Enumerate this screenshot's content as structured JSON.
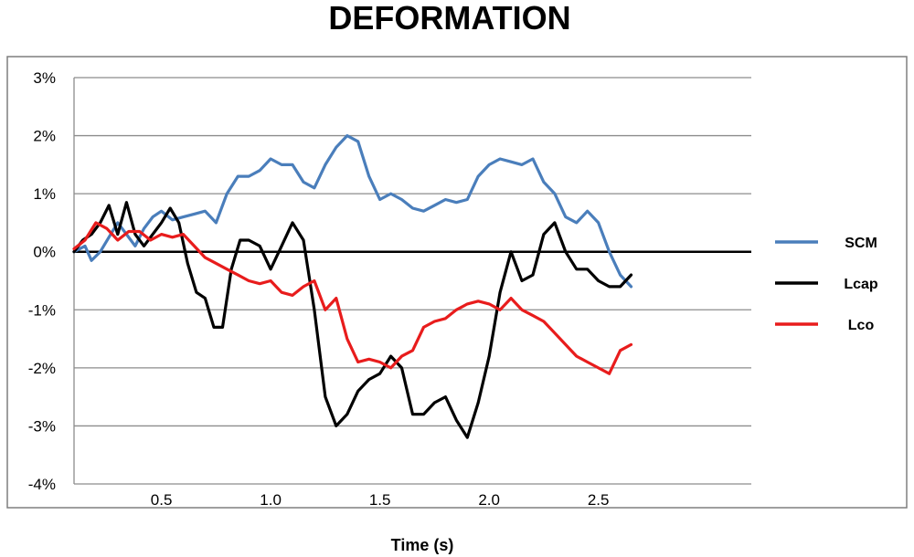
{
  "chart_data": {
    "type": "line",
    "title": "DEFORMATION",
    "xlabel": "Time (s)",
    "ylabel": "",
    "xlim": [
      0.1,
      3.2
    ],
    "ylim": [
      -4,
      3
    ],
    "yticks": [
      3,
      2,
      1,
      0,
      -1,
      -2,
      -3,
      -4
    ],
    "ytick_labels": [
      "3%",
      "2%",
      "1%",
      "0%",
      "-1%",
      "-2%",
      "-3%",
      "-4%"
    ],
    "xticks": [
      0.5,
      1.0,
      1.5,
      2.0,
      2.5
    ],
    "xtick_labels": [
      "0.5",
      "1.0",
      "1.5",
      "2.0",
      "2.5"
    ],
    "grid": "horizontal",
    "legend_position": "right",
    "series": [
      {
        "name": "SCM",
        "color": "#4A7EBB",
        "x": [
          0.1,
          0.15,
          0.18,
          0.22,
          0.26,
          0.3,
          0.34,
          0.38,
          0.42,
          0.46,
          0.5,
          0.55,
          0.6,
          0.65,
          0.7,
          0.75,
          0.8,
          0.85,
          0.9,
          0.95,
          1.0,
          1.05,
          1.1,
          1.15,
          1.2,
          1.25,
          1.3,
          1.35,
          1.4,
          1.45,
          1.5,
          1.55,
          1.6,
          1.65,
          1.7,
          1.75,
          1.8,
          1.85,
          1.9,
          1.95,
          2.0,
          2.05,
          2.1,
          2.15,
          2.2,
          2.25,
          2.3,
          2.35,
          2.4,
          2.45,
          2.5,
          2.55,
          2.6,
          2.65
        ],
        "values": [
          0.0,
          0.1,
          -0.15,
          0.0,
          0.25,
          0.5,
          0.3,
          0.1,
          0.4,
          0.6,
          0.7,
          0.55,
          0.6,
          0.65,
          0.7,
          0.5,
          1.0,
          1.3,
          1.3,
          1.4,
          1.6,
          1.5,
          1.5,
          1.2,
          1.1,
          1.5,
          1.8,
          2.0,
          1.9,
          1.3,
          0.9,
          1.0,
          0.9,
          0.75,
          0.7,
          0.8,
          0.9,
          0.85,
          0.9,
          1.3,
          1.5,
          1.6,
          1.55,
          1.5,
          1.6,
          1.2,
          1.0,
          0.6,
          0.5,
          0.7,
          0.5,
          0.0,
          -0.4,
          -0.6
        ]
      },
      {
        "name": "Lcap",
        "color": "#000000",
        "x": [
          0.1,
          0.14,
          0.18,
          0.22,
          0.26,
          0.3,
          0.34,
          0.38,
          0.42,
          0.46,
          0.5,
          0.54,
          0.58,
          0.62,
          0.66,
          0.7,
          0.74,
          0.78,
          0.82,
          0.86,
          0.9,
          0.95,
          1.0,
          1.05,
          1.1,
          1.15,
          1.2,
          1.25,
          1.3,
          1.35,
          1.4,
          1.45,
          1.5,
          1.55,
          1.6,
          1.65,
          1.7,
          1.75,
          1.8,
          1.85,
          1.9,
          1.95,
          2.0,
          2.05,
          2.1,
          2.15,
          2.2,
          2.25,
          2.3,
          2.35,
          2.4,
          2.45,
          2.5,
          2.55,
          2.6,
          2.65
        ],
        "values": [
          0.0,
          0.2,
          0.3,
          0.5,
          0.8,
          0.3,
          0.85,
          0.3,
          0.1,
          0.3,
          0.5,
          0.75,
          0.5,
          -0.2,
          -0.7,
          -0.8,
          -1.3,
          -1.3,
          -0.3,
          0.2,
          0.2,
          0.1,
          -0.3,
          0.1,
          0.5,
          0.2,
          -1.0,
          -2.5,
          -3.0,
          -2.8,
          -2.4,
          -2.2,
          -2.1,
          -1.8,
          -2.0,
          -2.8,
          -2.8,
          -2.6,
          -2.5,
          -2.9,
          -3.2,
          -2.6,
          -1.8,
          -0.7,
          0.0,
          -0.5,
          -0.4,
          0.3,
          0.5,
          0.0,
          -0.3,
          -0.3,
          -0.5,
          -0.6,
          -0.6,
          -0.4
        ]
      },
      {
        "name": "Lco",
        "color": "#E81C1C",
        "x": [
          0.1,
          0.15,
          0.2,
          0.25,
          0.3,
          0.35,
          0.4,
          0.45,
          0.5,
          0.55,
          0.6,
          0.65,
          0.7,
          0.75,
          0.8,
          0.85,
          0.9,
          0.95,
          1.0,
          1.05,
          1.1,
          1.15,
          1.2,
          1.25,
          1.3,
          1.35,
          1.4,
          1.45,
          1.5,
          1.55,
          1.6,
          1.65,
          1.7,
          1.75,
          1.8,
          1.85,
          1.9,
          1.95,
          2.0,
          2.05,
          2.1,
          2.15,
          2.2,
          2.25,
          2.3,
          2.35,
          2.4,
          2.45,
          2.5,
          2.55,
          2.6,
          2.65
        ],
        "values": [
          0.05,
          0.2,
          0.5,
          0.4,
          0.2,
          0.35,
          0.35,
          0.2,
          0.3,
          0.25,
          0.3,
          0.1,
          -0.1,
          -0.2,
          -0.3,
          -0.4,
          -0.5,
          -0.55,
          -0.5,
          -0.7,
          -0.75,
          -0.6,
          -0.5,
          -1.0,
          -0.8,
          -1.5,
          -1.9,
          -1.85,
          -1.9,
          -2.0,
          -1.8,
          -1.7,
          -1.3,
          -1.2,
          -1.15,
          -1.0,
          -0.9,
          -0.85,
          -0.9,
          -1.0,
          -0.8,
          -1.0,
          -1.1,
          -1.2,
          -1.4,
          -1.6,
          -1.8,
          -1.9,
          -2.0,
          -2.1,
          -1.7,
          -1.6
        ]
      }
    ]
  }
}
